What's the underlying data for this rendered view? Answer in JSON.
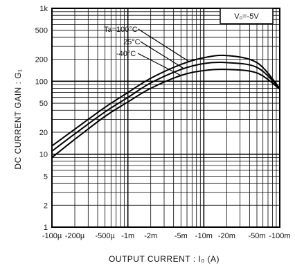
{
  "chart_data": {
    "type": "line",
    "xlabel": "OUTPUT CURRENT : I₀ (A)",
    "ylabel": "DC CURRENT GAIN : G₁",
    "x_scale": "log",
    "y_scale": "log",
    "xlim": [
      0.0001,
      0.1
    ],
    "ylim": [
      1,
      1000
    ],
    "grid": true,
    "x_tick_values": [
      0.0001,
      0.0002,
      0.0005,
      0.001,
      0.002,
      0.005,
      0.01,
      0.02,
      0.05,
      0.1
    ],
    "x_tick_labels": [
      "-100µ",
      "-200µ",
      "-500µ",
      "-1m",
      "-2m",
      "-5m",
      "-10m",
      "-20m",
      "-50m",
      "-100m"
    ],
    "y_tick_values": [
      1,
      2,
      5,
      10,
      20,
      50,
      100,
      200,
      500,
      1000
    ],
    "y_tick_labels": [
      "1",
      "2",
      "5",
      "10",
      "20",
      "50",
      "100",
      "200",
      "500",
      "1k"
    ],
    "legend_box": "V₀=-5V",
    "series": [
      {
        "name": "Ta=100°C",
        "x": [
          0.0001,
          0.0002,
          0.0005,
          0.001,
          0.002,
          0.005,
          0.01,
          0.02,
          0.05,
          0.1
        ],
        "y": [
          13,
          22,
          44,
          70,
          110,
          170,
          210,
          225,
          180,
          80
        ]
      },
      {
        "name": "25°C",
        "x": [
          0.0001,
          0.0002,
          0.0005,
          0.001,
          0.002,
          0.005,
          0.01,
          0.02,
          0.05,
          0.1
        ],
        "y": [
          11,
          19,
          38,
          60,
          95,
          145,
          175,
          180,
          155,
          80
        ]
      },
      {
        "name": "-40°C",
        "x": [
          0.0001,
          0.0002,
          0.0005,
          0.001,
          0.002,
          0.005,
          0.01,
          0.02,
          0.05,
          0.1
        ],
        "y": [
          9,
          16,
          33,
          52,
          80,
          120,
          140,
          145,
          130,
          78
        ]
      }
    ]
  }
}
